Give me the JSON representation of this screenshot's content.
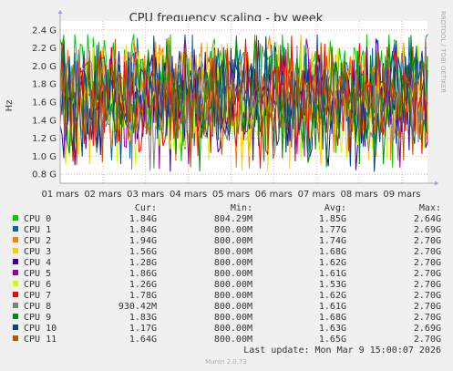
{
  "chart_data": {
    "type": "line",
    "title": "CPU frequency scaling - by week",
    "ylabel": "Hz",
    "side_label": "RRDTOOL / TOBI OETIKER",
    "ylim": [
      0.7,
      2.5
    ],
    "yticks": [
      {
        "v": 0.8,
        "label": "0.8 G"
      },
      {
        "v": 1.0,
        "label": "1.0 G"
      },
      {
        "v": 1.2,
        "label": "1.2 G"
      },
      {
        "v": 1.4,
        "label": "1.4 G"
      },
      {
        "v": 1.6,
        "label": "1.6 G"
      },
      {
        "v": 1.8,
        "label": "1.8 G"
      },
      {
        "v": 2.0,
        "label": "2.0 G"
      },
      {
        "v": 2.2,
        "label": "2.2 G"
      },
      {
        "v": 2.4,
        "label": "2.4 G"
      }
    ],
    "xlim": [
      0,
      8.6
    ],
    "xticks": [
      {
        "v": 0,
        "label": "01 mars"
      },
      {
        "v": 1,
        "label": "02 mars"
      },
      {
        "v": 2,
        "label": "03 mars"
      },
      {
        "v": 3,
        "label": "04 mars"
      },
      {
        "v": 4,
        "label": "05 mars"
      },
      {
        "v": 5,
        "label": "06 mars"
      },
      {
        "v": 6,
        "label": "07 mars"
      },
      {
        "v": 7,
        "label": "08 mars"
      },
      {
        "v": 8,
        "label": "09 mars"
      }
    ],
    "columns": [
      "Cur:",
      "Min:",
      "Avg:",
      "Max:"
    ],
    "series": [
      {
        "name": "CPU 0",
        "color": "#00cc00",
        "cur": "1.84G",
        "min": "804.29M",
        "avg": "1.85G",
        "max": "2.64G",
        "seed": 11,
        "avg_v": 1.85
      },
      {
        "name": "CPU 1",
        "color": "#0066b3",
        "cur": "1.84G",
        "min": "800.00M",
        "avg": "1.77G",
        "max": "2.69G",
        "seed": 23,
        "avg_v": 1.77
      },
      {
        "name": "CPU 2",
        "color": "#ff8000",
        "cur": "1.94G",
        "min": "800.00M",
        "avg": "1.74G",
        "max": "2.70G",
        "seed": 37,
        "avg_v": 1.74
      },
      {
        "name": "CPU 3",
        "color": "#ffcc00",
        "cur": "1.56G",
        "min": "800.00M",
        "avg": "1.68G",
        "max": "2.70G",
        "seed": 41,
        "avg_v": 1.68
      },
      {
        "name": "CPU 4",
        "color": "#330099",
        "cur": "1.28G",
        "min": "800.00M",
        "avg": "1.62G",
        "max": "2.70G",
        "seed": 53,
        "avg_v": 1.62
      },
      {
        "name": "CPU 5",
        "color": "#990099",
        "cur": "1.86G",
        "min": "800.00M",
        "avg": "1.61G",
        "max": "2.70G",
        "seed": 67,
        "avg_v": 1.61
      },
      {
        "name": "CPU 6",
        "color": "#ccff00",
        "cur": "1.26G",
        "min": "800.00M",
        "avg": "1.53G",
        "max": "2.70G",
        "seed": 71,
        "avg_v": 1.53
      },
      {
        "name": "CPU 7",
        "color": "#ff0000",
        "cur": "1.78G",
        "min": "800.00M",
        "avg": "1.62G",
        "max": "2.70G",
        "seed": 83,
        "avg_v": 1.62
      },
      {
        "name": "CPU 8",
        "color": "#808080",
        "cur": "930.42M",
        "min": "800.00M",
        "avg": "1.61G",
        "max": "2.70G",
        "seed": 97,
        "avg_v": 1.61
      },
      {
        "name": "CPU 9",
        "color": "#008f00",
        "cur": "1.83G",
        "min": "800.00M",
        "avg": "1.68G",
        "max": "2.70G",
        "seed": 101,
        "avg_v": 1.68
      },
      {
        "name": "CPU 10",
        "color": "#00487d",
        "cur": "1.17G",
        "min": "800.00M",
        "avg": "1.63G",
        "max": "2.69G",
        "seed": 113,
        "avg_v": 1.63
      },
      {
        "name": "CPU 11",
        "color": "#b35a00",
        "cur": "1.64G",
        "min": "800.00M",
        "avg": "1.65G",
        "max": "2.70G",
        "seed": 127,
        "avg_v": 1.65
      }
    ],
    "last_update": "Last update: Mon Mar  9 15:00:07 2026",
    "footer": "Munin 2.0.73"
  }
}
